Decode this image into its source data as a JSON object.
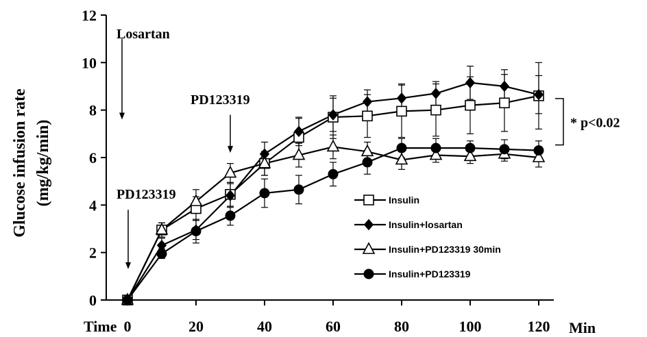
{
  "chart_data": {
    "type": "line",
    "ylabel_line1": "Glucose infusion rate",
    "ylabel_line2": "(mg/kg/min)",
    "xlabel_left": "Time",
    "xlabel_right": "Min",
    "xlim": [
      0,
      120
    ],
    "ylim": [
      0,
      12
    ],
    "x_ticks": [
      0,
      20,
      40,
      60,
      80,
      100,
      120
    ],
    "y_ticks": [
      0,
      2,
      4,
      6,
      8,
      10,
      12
    ],
    "grid": false,
    "legend_position": "bottom-right",
    "annotations": [
      {
        "text": "Losartan",
        "x": 0,
        "arrow_from": 11,
        "arrow_to": 7.6
      },
      {
        "text": "PD123319",
        "x": 30,
        "arrow_from": 7.8,
        "arrow_to": 6.2
      },
      {
        "text": "PD123319",
        "x": 0,
        "arrow_from": 3.8,
        "arrow_to": 1.3
      }
    ],
    "significance": {
      "text": "* p<0.02",
      "y_top": 8.6,
      "y_bottom": 6.3
    },
    "series": [
      {
        "name": "Insulin",
        "marker": "open-square",
        "x": [
          0,
          10,
          20,
          30,
          40,
          50,
          60,
          70,
          80,
          90,
          100,
          110,
          120
        ],
        "values": [
          0,
          2.95,
          3.85,
          4.45,
          5.75,
          6.85,
          7.7,
          7.75,
          7.95,
          8.0,
          8.2,
          8.3,
          8.6
        ],
        "errors": [
          0,
          0.3,
          0.5,
          0.5,
          0.5,
          0.8,
          0.9,
          0.9,
          1.1,
          1.1,
          1.2,
          1.2,
          1.4
        ]
      },
      {
        "name": "Insulin+losartan",
        "marker": "filled-diamond",
        "x": [
          0,
          10,
          20,
          30,
          40,
          50,
          60,
          70,
          80,
          90,
          100,
          110,
          120
        ],
        "values": [
          0,
          2.3,
          2.95,
          4.4,
          6.15,
          7.1,
          7.8,
          8.35,
          8.5,
          8.7,
          9.15,
          9.0,
          8.65
        ],
        "errors": [
          0,
          0.3,
          0.4,
          0.5,
          0.5,
          0.6,
          0.7,
          0.5,
          0.6,
          0.5,
          0.7,
          0.7,
          0.8
        ]
      },
      {
        "name": "Insulin+PD123319  30min",
        "marker": "open-triangle",
        "x": [
          0,
          10,
          20,
          30,
          40,
          50,
          60,
          70,
          80,
          90,
          100,
          110,
          120
        ],
        "values": [
          0,
          2.95,
          4.15,
          5.35,
          5.75,
          6.1,
          6.45,
          6.25,
          5.9,
          6.1,
          6.05,
          6.15,
          6.0
        ],
        "errors": [
          0,
          0.3,
          0.5,
          0.4,
          0.5,
          0.5,
          0.5,
          0.4,
          0.4,
          0.3,
          0.3,
          0.3,
          0.4
        ]
      },
      {
        "name": "Insulin+PD123319",
        "marker": "filled-circle",
        "x": [
          0,
          10,
          20,
          30,
          40,
          50,
          60,
          70,
          80,
          90,
          100,
          110,
          120
        ],
        "values": [
          0,
          1.95,
          2.9,
          3.55,
          4.5,
          4.65,
          5.3,
          5.8,
          6.4,
          6.4,
          6.4,
          6.35,
          6.3
        ],
        "errors": [
          0,
          0.2,
          0.5,
          0.4,
          0.6,
          0.6,
          0.5,
          0.5,
          0.4,
          0.4,
          0.3,
          0.4,
          0.4
        ]
      }
    ]
  }
}
